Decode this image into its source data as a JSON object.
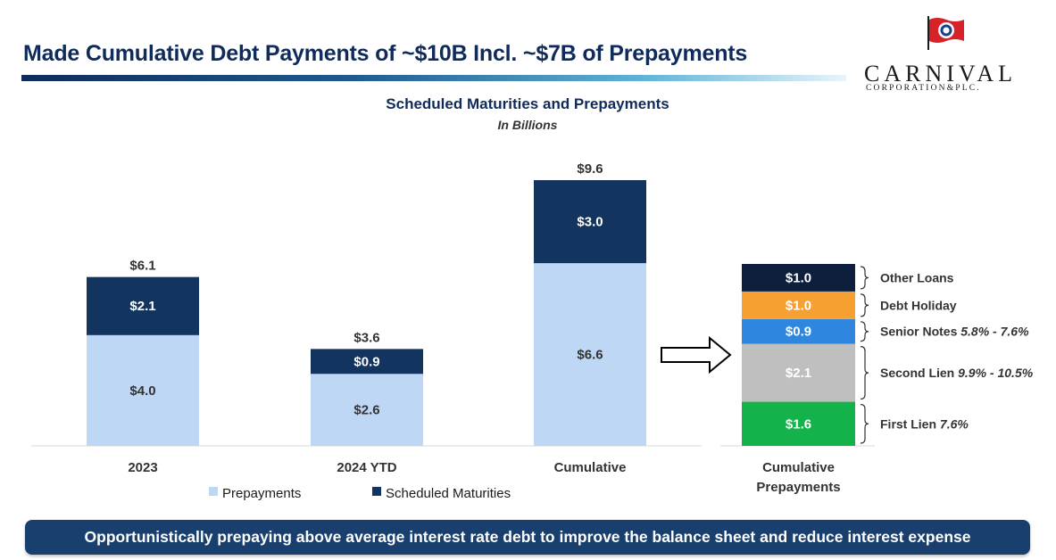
{
  "title": "Made Cumulative Debt Payments of ~$10B Incl. ~$7B of Prepayments",
  "logo": {
    "name": "CARNIVAL",
    "subtitle": "CORPORATION&PLC."
  },
  "banner": "Opportunistically prepaying above average interest rate debt to improve the balance sheet and reduce interest expense",
  "colors": {
    "prepayments": "#bdd7f4",
    "scheduled_maturities": "#13345f",
    "title": "#0f2b5b",
    "banner": "#183f6e"
  },
  "chart_data": [
    {
      "type": "bar",
      "stacked": true,
      "title": "Scheduled Maturities and Prepayments",
      "subtitle": "In Billions",
      "categories": [
        "2023",
        "2024 YTD",
        "Cumulative"
      ],
      "series": [
        {
          "name": "Prepayments",
          "values": [
            4.0,
            2.6,
            6.6
          ],
          "labels": [
            "$4.0",
            "$2.6",
            "$6.6"
          ],
          "color": "#bdd7f4"
        },
        {
          "name": "Scheduled Maturities",
          "values": [
            2.1,
            0.9,
            3.0
          ],
          "labels": [
            "$2.1",
            "$0.9",
            "$3.0"
          ],
          "color": "#13345f"
        }
      ],
      "totals": [
        6.1,
        3.6,
        9.6
      ],
      "total_labels": [
        "$6.1",
        "$3.6",
        "$9.6"
      ],
      "legend": "bottom",
      "grid": false,
      "ylim": [
        0,
        9.6
      ]
    },
    {
      "type": "bar",
      "stacked": true,
      "categories": [
        "Cumulative Prepayments"
      ],
      "category_lines": [
        "Cumulative",
        "Prepayments"
      ],
      "segments": [
        {
          "label": "$1.6",
          "value": 1.6,
          "name": "First Lien",
          "rate": "7.6%",
          "color": "#13b24a",
          "text_color": "#ffffff"
        },
        {
          "label": "$2.1",
          "value": 2.1,
          "name": "Second Lien",
          "rate": "9.9% - 10.5%",
          "color": "#bfbfbf",
          "text_color": "#ffffff"
        },
        {
          "label": "$0.9",
          "value": 0.9,
          "name": "Senior Notes",
          "rate": "5.8% - 7.6%",
          "color": "#2e86de",
          "text_color": "#ffffff"
        },
        {
          "label": "$1.0",
          "value": 1.0,
          "name": "Debt Holiday",
          "rate": "",
          "color": "#f5a031",
          "text_color": "#ffffff"
        },
        {
          "label": "$1.0",
          "value": 1.0,
          "name": "Other Loans",
          "rate": "",
          "color": "#0d1f3c",
          "text_color": "#ffffff"
        }
      ],
      "grid": false
    }
  ]
}
